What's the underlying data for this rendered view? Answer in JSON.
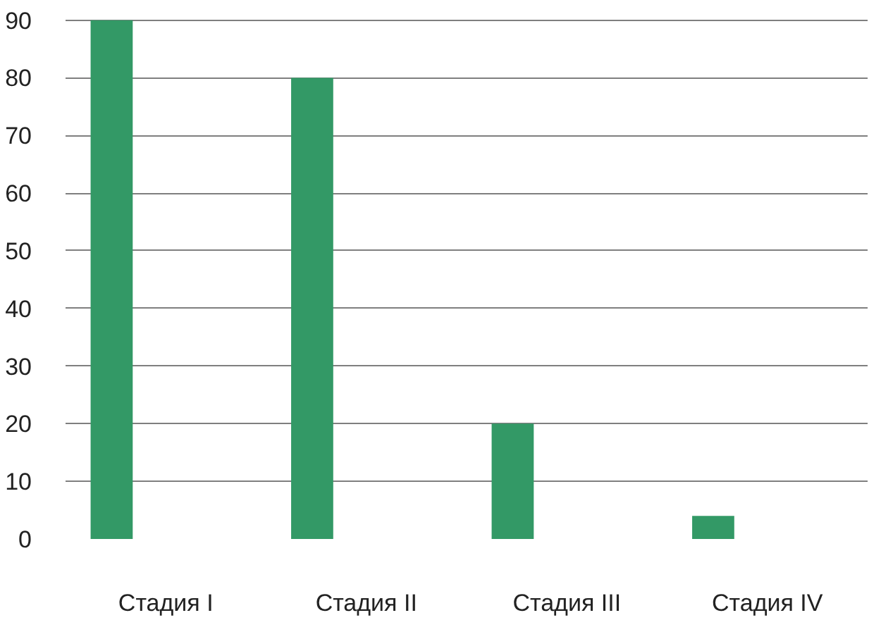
{
  "chart_data": {
    "type": "bar",
    "categories": [
      "Стадия I",
      "Стадия II",
      "Стадия III",
      "Стадия IV"
    ],
    "values": [
      90,
      80,
      20,
      4
    ],
    "color": "#339966",
    "ylim": [
      0,
      90
    ],
    "yticks": [
      0,
      10,
      20,
      30,
      40,
      50,
      60,
      70,
      80,
      90
    ],
    "grid": "y"
  }
}
